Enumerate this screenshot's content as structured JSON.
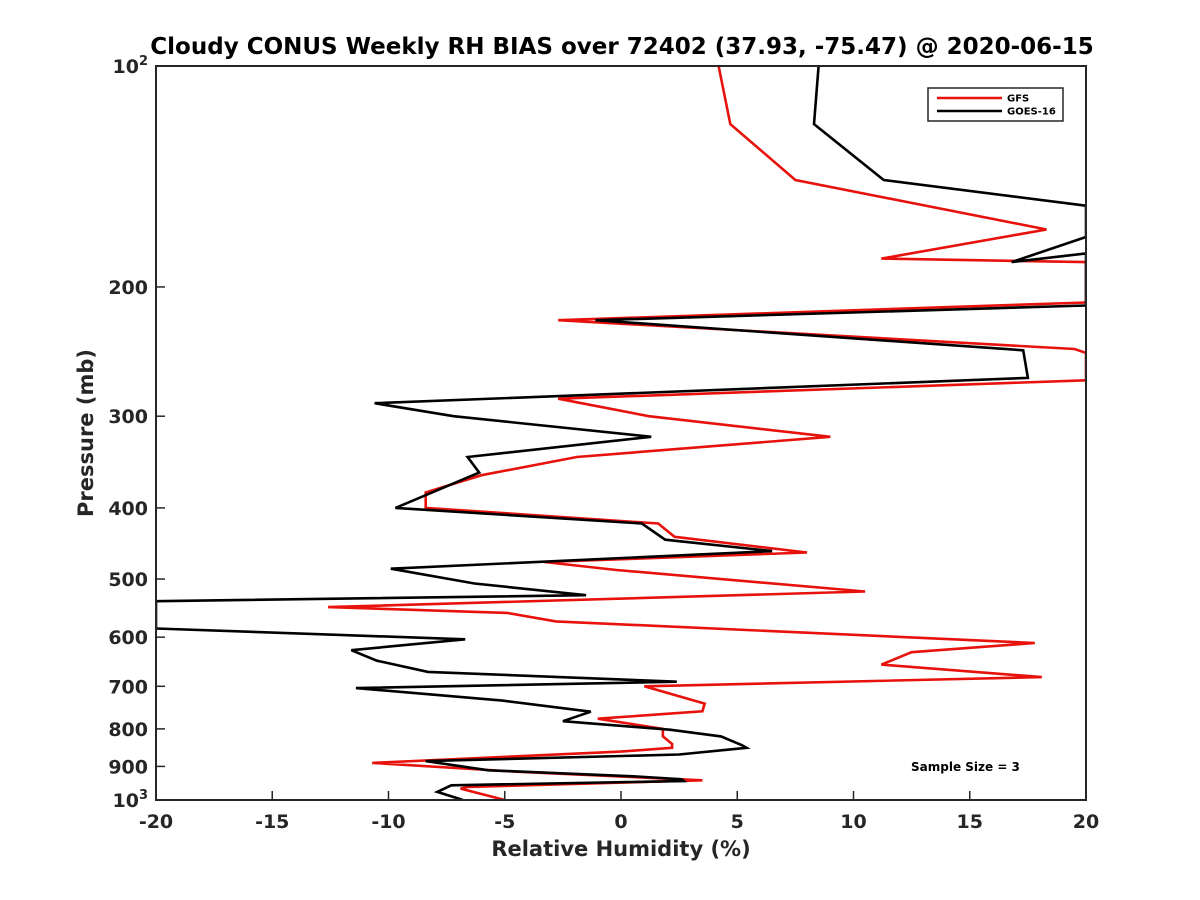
{
  "chart_data": {
    "type": "line",
    "title": "Cloudy CONUS Weekly RH BIAS over 72402 (37.93, -75.47) @ 2020-06-15",
    "xlabel": "Relative Humidity (%)",
    "ylabel": "Pressure (mb)",
    "xlim": [
      -20,
      20
    ],
    "ylim": [
      100,
      1000
    ],
    "y_scale": "log",
    "y_reversed": true,
    "grid": false,
    "legend_position": "top-right",
    "x_ticks": [
      "-20",
      "-15",
      "-10",
      "-5",
      "0",
      "5",
      "10",
      "15",
      "20"
    ],
    "y_ticks": [
      {
        "base": "10",
        "exp": "2",
        "value": 100
      },
      {
        "base": "200",
        "exp": "",
        "value": 200
      },
      {
        "base": "300",
        "exp": "",
        "value": 300
      },
      {
        "base": "400",
        "exp": "",
        "value": 400
      },
      {
        "base": "500",
        "exp": "",
        "value": 500
      },
      {
        "base": "600",
        "exp": "",
        "value": 600
      },
      {
        "base": "700",
        "exp": "",
        "value": 700
      },
      {
        "base": "800",
        "exp": "",
        "value": 800
      },
      {
        "base": "900",
        "exp": "",
        "value": 900
      },
      {
        "base": "10",
        "exp": "3",
        "value": 1000
      }
    ],
    "annotation": "Sample Size = 3",
    "series": [
      {
        "name": "GFS",
        "color": "#e8120d",
        "points": [
          [
            4.2,
            100
          ],
          [
            4.7,
            120
          ],
          [
            7.5,
            143
          ],
          [
            18.3,
            167
          ],
          [
            11.2,
            183
          ],
          [
            20.0,
            185
          ],
          [
            20.0,
            210
          ],
          [
            -2.7,
            222
          ],
          [
            19.5,
            243
          ],
          [
            20.0,
            246
          ],
          [
            20.0,
            268
          ],
          [
            -2.7,
            284
          ],
          [
            1.2,
            300
          ],
          [
            9.0,
            320
          ],
          [
            -1.9,
            341
          ],
          [
            -6.0,
            361
          ],
          [
            -8.4,
            381
          ],
          [
            -8.4,
            400
          ],
          [
            1.6,
            420
          ],
          [
            2.3,
            438
          ],
          [
            8.0,
            460
          ],
          [
            -3.3,
            474
          ],
          [
            -0.2,
            486
          ],
          [
            10.5,
            520
          ],
          [
            -12.6,
            546
          ],
          [
            -4.9,
            556
          ],
          [
            -2.8,
            571
          ],
          [
            17.8,
            611
          ],
          [
            12.5,
            629
          ],
          [
            11.2,
            654
          ],
          [
            18.1,
            680
          ],
          [
            1.0,
            700
          ],
          [
            3.6,
            739
          ],
          [
            3.5,
            757
          ],
          [
            -1.0,
            775
          ],
          [
            1.8,
            800
          ],
          [
            1.8,
            819
          ],
          [
            2.2,
            839
          ],
          [
            2.2,
            849
          ],
          [
            0.0,
            859
          ],
          [
            -10.7,
            890
          ],
          [
            -4.5,
            915
          ],
          [
            3.5,
            940
          ],
          [
            -6.6,
            960
          ],
          [
            -6.9,
            965
          ],
          [
            -5.0,
            1000
          ]
        ]
      },
      {
        "name": "GOES-16",
        "color": "#000000",
        "points": [
          [
            8.5,
            100
          ],
          [
            8.3,
            120
          ],
          [
            11.3,
            143
          ],
          [
            20.0,
            155
          ],
          [
            20.0,
            171
          ],
          [
            16.8,
            185
          ],
          [
            20.0,
            180
          ],
          [
            20.0,
            212
          ],
          [
            -1.1,
            222
          ],
          [
            17.3,
            244
          ],
          [
            17.5,
            266
          ],
          [
            -10.6,
            288
          ],
          [
            -7.2,
            300
          ],
          [
            1.3,
            320
          ],
          [
            -6.6,
            341
          ],
          [
            -6.1,
            358
          ],
          [
            -9.7,
            400
          ],
          [
            0.9,
            420
          ],
          [
            1.9,
            442
          ],
          [
            6.5,
            458
          ],
          [
            -9.9,
            484
          ],
          [
            -6.3,
            507
          ],
          [
            -1.5,
            526
          ],
          [
            -20.0,
            536
          ],
          [
            -20.0,
            584
          ],
          [
            -6.7,
            604
          ],
          [
            -11.6,
            625
          ],
          [
            -10.5,
            646
          ],
          [
            -8.3,
            669
          ],
          [
            2.4,
            690
          ],
          [
            -11.4,
            704
          ],
          [
            -5.1,
            732
          ],
          [
            -1.3,
            758
          ],
          [
            -2.5,
            781
          ],
          [
            2.1,
            802
          ],
          [
            4.3,
            819
          ],
          [
            5.2,
            842
          ],
          [
            5.4,
            849
          ],
          [
            2.5,
            867
          ],
          [
            -8.4,
            885
          ],
          [
            -5.7,
            911
          ],
          [
            0.7,
            929
          ],
          [
            2.6,
            937
          ],
          [
            2.7,
            942
          ],
          [
            -7.3,
            955
          ],
          [
            -7.9,
            975
          ],
          [
            -6.8,
            1000
          ]
        ]
      }
    ]
  }
}
